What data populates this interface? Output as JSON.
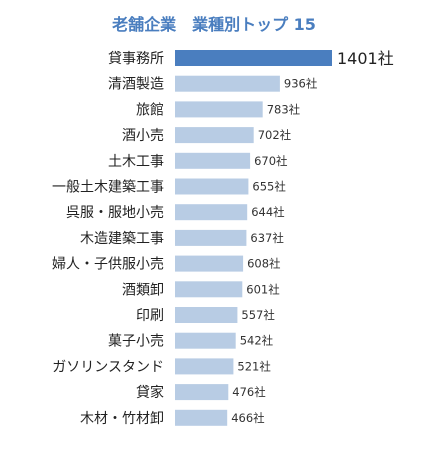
{
  "chart_data": {
    "type": "bar",
    "orientation": "horizontal",
    "title": "老舗企業　業種別トップ 15",
    "categories": [
      "貸事務所",
      "清酒製造",
      "旅館",
      "酒小売",
      "土木工事",
      "一般土木建築工事",
      "呉服・服地小売",
      "木造建築工事",
      "婦人・子供服小売",
      "酒類卸",
      "印刷",
      "菓子小売",
      "ガソリンスタンド",
      "貸家",
      "木材・竹材卸"
    ],
    "values": [
      1401,
      936,
      783,
      702,
      670,
      655,
      644,
      637,
      608,
      601,
      557,
      542,
      521,
      476,
      466
    ],
    "value_labels": [
      "1401社",
      "936社",
      "783社",
      "702社",
      "670社",
      "655社",
      "644社",
      "637社",
      "608社",
      "601社",
      "557社",
      "542社",
      "521社",
      "476社",
      "466社"
    ],
    "colors": {
      "highlight_bar": "#4a7ebf",
      "bar": "#b8cce4",
      "title": "#4a7ebf"
    },
    "xlabel": "",
    "ylabel": "",
    "grid": false,
    "legend": "none"
  }
}
